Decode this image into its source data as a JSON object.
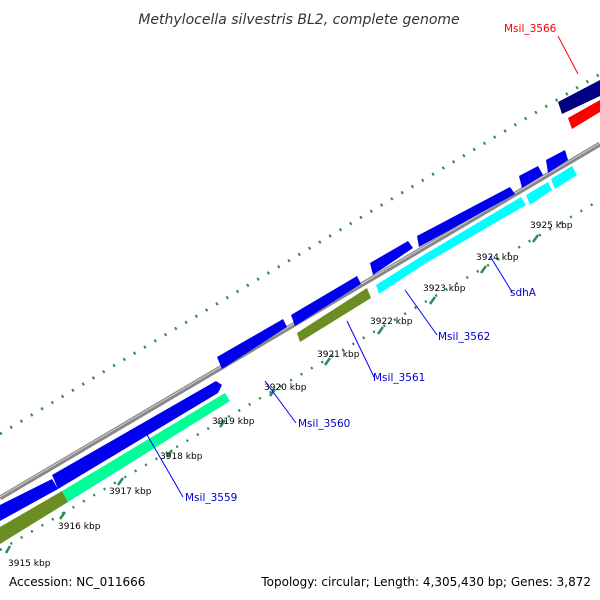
{
  "title": "Methylocella silvestris BL2, complete genome",
  "accession": "Accession: NC_011666",
  "summary": "Topology: circular; Length: 4,305,430 bp; Genes: 3,872",
  "colors": {
    "backbone": "#888888",
    "cds_forward": "#0000ee",
    "cds_reverse_cyan": "#00ffff",
    "cds_reverse_green": "#00ff99",
    "cds_olive": "#6b8e23",
    "highlight_navy": "#000080",
    "highlight_red": "#ff0000",
    "tick": "#2e8b57",
    "label_link": "#0000ff",
    "label_highlight": "#ff0000"
  },
  "ticks": [
    "3915 kbp",
    "3916 kbp",
    "3917 kbp",
    "3918 kbp",
    "3919 kbp",
    "3920 kbp",
    "3921 kbp",
    "3922 kbp",
    "3923 kbp",
    "3924 kbp",
    "3925 kbp"
  ],
  "gene_labels": [
    "Msil_3559",
    "Msil_3560",
    "Msil_3561",
    "Msil_3562",
    "sdhA",
    "Msil_3566"
  ]
}
